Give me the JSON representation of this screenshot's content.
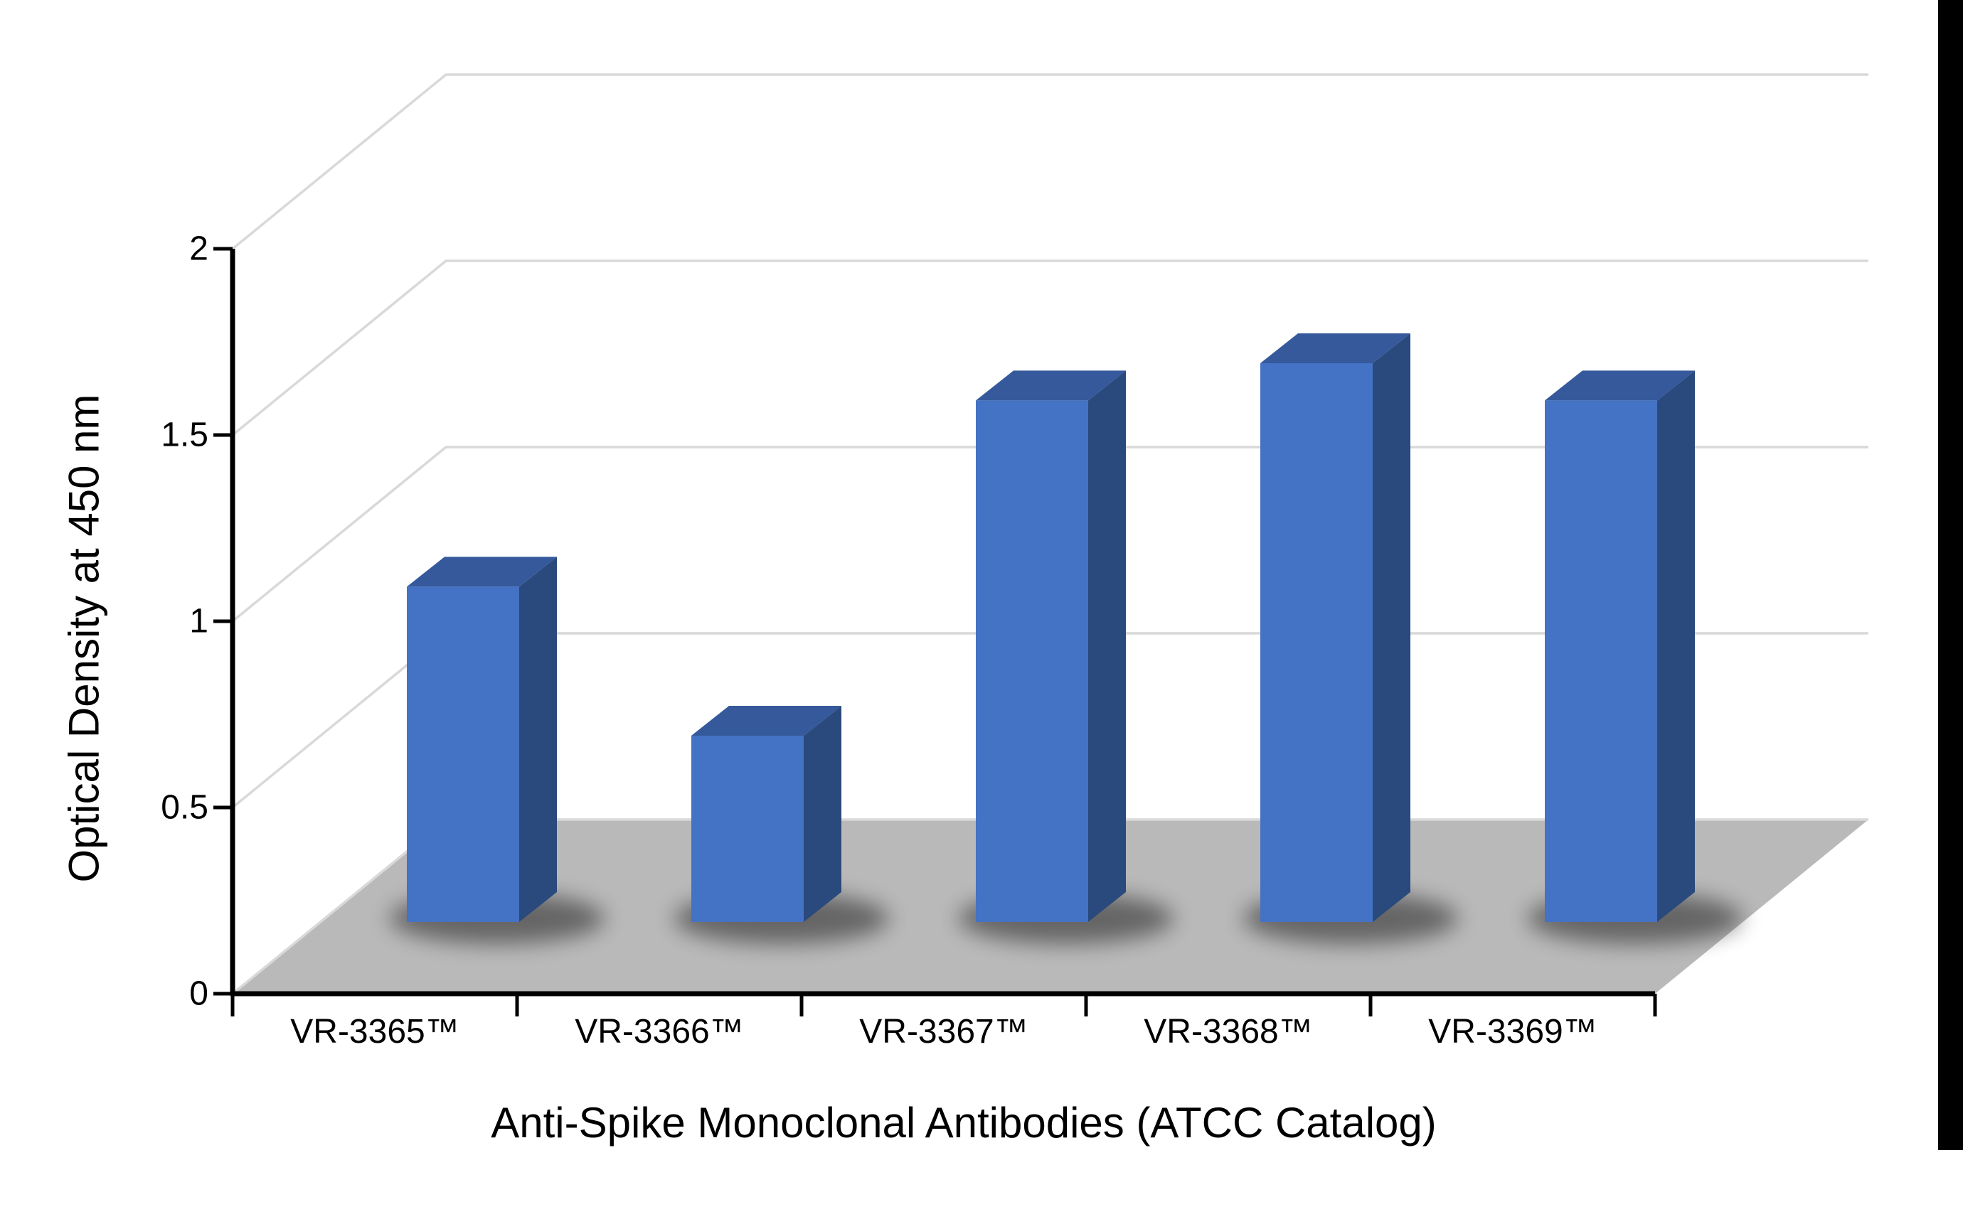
{
  "chart_data": {
    "type": "bar",
    "projection": "3d-column",
    "categories": [
      "VR-3365™",
      "VR-3366™",
      "VR-3367™",
      "VR-3368™",
      "VR-3369™"
    ],
    "values": [
      0.9,
      0.5,
      1.4,
      1.5,
      1.4
    ],
    "title": "",
    "xlabel": "Anti-Spike Monoclonal Antibodies (ATCC Catalog)",
    "ylabel": "Optical Density at 450 nm",
    "ylim": [
      0,
      2
    ],
    "yticks": [
      0,
      0.5,
      1,
      1.5,
      2
    ],
    "ytick_labels": [
      "0",
      "0.5",
      "1",
      "1.5",
      "2"
    ],
    "grid": true,
    "legend": false,
    "colors": {
      "bar_front": "#4472C4",
      "bar_top": "#35599B",
      "bar_side": "#2A497C",
      "floor": "#B9B9B9",
      "gridline": "#D9D9D9",
      "axis": "#000000",
      "text": "#000000",
      "background": "#FFFFFF",
      "right_edge_bar": "#000000"
    }
  }
}
